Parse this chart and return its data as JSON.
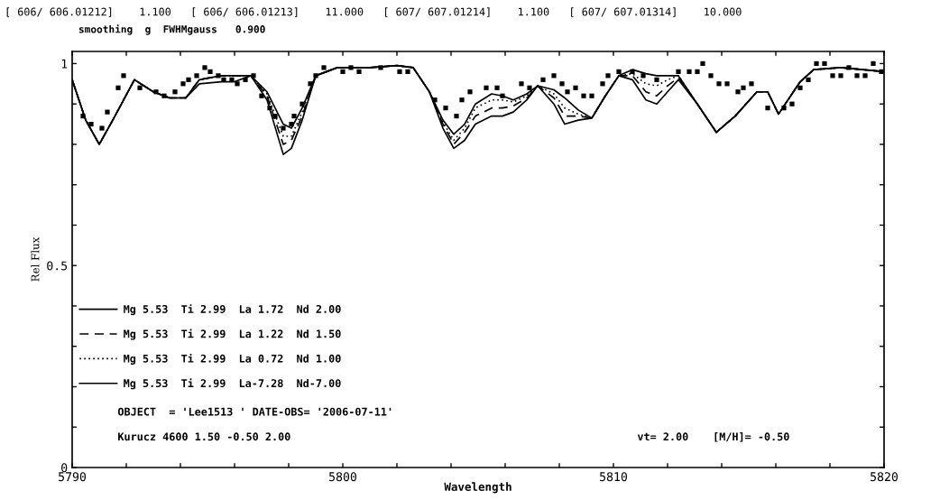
{
  "chart_data": {
    "type": "line",
    "title": "[ 606/ 606.01212]    1.100   [ 606/ 606.01213]    11.000   [ 607/ 607.01214]    1.100   [ 607/ 607.01314]    10.000",
    "subtitle": "smoothing  g  FWHMgauss   0.900",
    "xlabel": "Wavelength",
    "ylabel": "Rel Flux",
    "x": [
      5790.0,
      5790.5,
      5791.0,
      5791.5,
      5792.3,
      5793.0,
      5793.6,
      5794.2,
      5794.7,
      5795.5,
      5796.0,
      5796.6,
      5797.2,
      5797.8,
      5798.1,
      5798.5,
      5799.0,
      5799.8,
      5801.0,
      5802.0,
      5802.6,
      5803.2,
      5803.7,
      5804.1,
      5804.5,
      5804.9,
      5805.5,
      5805.9,
      5806.3,
      5806.8,
      5807.2,
      5807.8,
      5808.2,
      5808.7,
      5809.2,
      5809.7,
      5810.2,
      5810.7,
      5811.2,
      5811.6,
      5812.0,
      5812.4,
      5813.1,
      5813.8,
      5814.5,
      5815.3,
      5815.7,
      5816.1,
      5816.9,
      5817.4,
      5818.4,
      5819.2,
      5820.0
    ],
    "series": [
      {
        "name": "Mg 5.53  Ti 2.99  La 1.72  Nd 2.00",
        "color": "#000000",
        "line_style": "solid",
        "values": [
          0.96,
          0.86,
          0.8,
          0.86,
          0.96,
          0.93,
          0.915,
          0.915,
          0.96,
          0.97,
          0.97,
          0.97,
          0.91,
          0.775,
          0.79,
          0.86,
          0.97,
          0.99,
          0.99,
          0.995,
          0.99,
          0.93,
          0.84,
          0.79,
          0.81,
          0.85,
          0.87,
          0.87,
          0.88,
          0.91,
          0.945,
          0.9,
          0.85,
          0.86,
          0.865,
          0.92,
          0.97,
          0.96,
          0.91,
          0.9,
          0.93,
          0.96,
          0.9,
          0.83,
          0.87,
          0.93,
          0.93,
          0.875,
          0.955,
          0.985,
          0.99,
          0.985,
          0.98
        ]
      },
      {
        "name": "Mg 5.53  Ti 2.99  La 1.22  Nd 1.50",
        "color": "#000000",
        "line_style": "dashed",
        "values": [
          0.96,
          0.86,
          0.8,
          0.86,
          0.96,
          0.93,
          0.915,
          0.915,
          0.96,
          0.97,
          0.97,
          0.97,
          0.92,
          0.8,
          0.81,
          0.87,
          0.97,
          0.99,
          0.99,
          0.995,
          0.99,
          0.93,
          0.85,
          0.8,
          0.83,
          0.87,
          0.89,
          0.89,
          0.895,
          0.915,
          0.945,
          0.915,
          0.87,
          0.87,
          0.865,
          0.92,
          0.97,
          0.97,
          0.93,
          0.92,
          0.945,
          0.965,
          0.9,
          0.83,
          0.87,
          0.93,
          0.93,
          0.875,
          0.955,
          0.985,
          0.99,
          0.985,
          0.98
        ]
      },
      {
        "name": "Mg 5.53  Ti 2.99  La 0.72  Nd 1.00",
        "color": "#000000",
        "line_style": "dotted",
        "values": [
          0.96,
          0.86,
          0.8,
          0.86,
          0.96,
          0.93,
          0.915,
          0.915,
          0.96,
          0.97,
          0.97,
          0.97,
          0.925,
          0.82,
          0.82,
          0.88,
          0.97,
          0.99,
          0.99,
          0.995,
          0.99,
          0.93,
          0.855,
          0.81,
          0.84,
          0.89,
          0.91,
          0.91,
          0.905,
          0.92,
          0.945,
          0.925,
          0.89,
          0.875,
          0.865,
          0.92,
          0.97,
          0.975,
          0.95,
          0.945,
          0.96,
          0.97,
          0.9,
          0.83,
          0.87,
          0.93,
          0.93,
          0.875,
          0.955,
          0.985,
          0.99,
          0.985,
          0.98
        ]
      },
      {
        "name": "Mg 5.53  Ti 2.99  La-7.28  Nd-7.00",
        "color": "#000000",
        "line_style": "solid",
        "values": [
          0.96,
          0.86,
          0.8,
          0.86,
          0.96,
          0.93,
          0.915,
          0.915,
          0.95,
          0.955,
          0.955,
          0.97,
          0.93,
          0.85,
          0.84,
          0.89,
          0.97,
          0.99,
          0.99,
          0.995,
          0.99,
          0.93,
          0.86,
          0.825,
          0.85,
          0.9,
          0.925,
          0.92,
          0.91,
          0.925,
          0.945,
          0.935,
          0.915,
          0.885,
          0.865,
          0.92,
          0.97,
          0.985,
          0.975,
          0.97,
          0.97,
          0.97,
          0.9,
          0.83,
          0.87,
          0.93,
          0.93,
          0.875,
          0.955,
          0.985,
          0.99,
          0.985,
          0.98
        ]
      },
      {
        "type": "scatter",
        "color": "#000000",
        "marker": "square",
        "x": [
          5790.4,
          5790.7,
          5791.1,
          5791.3,
          5791.7,
          5791.9,
          5792.5,
          5793.1,
          5793.4,
          5793.8,
          5794.1,
          5794.3,
          5794.6,
          5794.9,
          5795.1,
          5795.4,
          5795.6,
          5795.9,
          5796.1,
          5796.4,
          5796.7,
          5797.0,
          5797.3,
          5797.5,
          5797.8,
          5798.1,
          5798.2,
          5798.5,
          5798.8,
          5799.0,
          5799.3,
          5800.0,
          5800.3,
          5800.6,
          5801.4,
          5802.1,
          5802.4,
          5803.4,
          5803.8,
          5804.2,
          5804.4,
          5804.7,
          5805.3,
          5805.7,
          5805.9,
          5806.6,
          5806.9,
          5807.4,
          5807.8,
          5808.1,
          5808.3,
          5808.6,
          5808.9,
          5809.2,
          5809.6,
          5809.8,
          5810.2,
          5810.7,
          5811.1,
          5811.6,
          5812.4,
          5812.8,
          5813.1,
          5813.3,
          5813.6,
          5813.9,
          5814.2,
          5814.6,
          5814.8,
          5815.1,
          5815.7,
          5816.3,
          5816.6,
          5816.9,
          5817.2,
          5817.5,
          5817.8,
          5818.1,
          5818.4,
          5818.7,
          5819.0,
          5819.3,
          5819.6,
          5819.9
        ],
        "values": [
          0.87,
          0.85,
          0.84,
          0.88,
          0.94,
          0.97,
          0.94,
          0.93,
          0.92,
          0.93,
          0.95,
          0.96,
          0.97,
          0.99,
          0.98,
          0.97,
          0.96,
          0.96,
          0.95,
          0.96,
          0.97,
          0.92,
          0.89,
          0.87,
          0.84,
          0.85,
          0.87,
          0.9,
          0.95,
          0.97,
          0.99,
          0.98,
          0.99,
          0.98,
          0.99,
          0.98,
          0.98,
          0.91,
          0.89,
          0.87,
          0.91,
          0.93,
          0.94,
          0.94,
          0.92,
          0.95,
          0.94,
          0.96,
          0.97,
          0.95,
          0.93,
          0.94,
          0.92,
          0.92,
          0.95,
          0.97,
          0.98,
          0.98,
          0.97,
          0.96,
          0.98,
          0.98,
          0.98,
          1.0,
          0.97,
          0.95,
          0.95,
          0.93,
          0.94,
          0.95,
          0.89,
          0.89,
          0.9,
          0.94,
          0.96,
          1.0,
          1.0,
          0.97,
          0.97,
          0.99,
          0.97,
          0.97,
          1.0,
          0.98
        ]
      }
    ],
    "xlim": [
      5790,
      5820
    ],
    "xticks": [
      5790,
      {
        "value": 5792,
        "label": null
      },
      {
        "value": 5794,
        "label": null
      },
      {
        "value": 5796,
        "label": null
      },
      {
        "value": 5798,
        "label": null
      },
      5800,
      {
        "value": 5802,
        "label": null
      },
      {
        "value": 5804,
        "label": null
      },
      {
        "value": 5806,
        "label": null
      },
      {
        "value": 5808,
        "label": null
      },
      5810,
      {
        "value": 5812,
        "label": null
      },
      {
        "value": 5814,
        "label": null
      },
      {
        "value": 5816,
        "label": null
      },
      {
        "value": 5818,
        "label": null
      },
      5820
    ],
    "ylim": [
      0,
      1.03
    ],
    "yticks": [
      0,
      {
        "value": 0.1,
        "label": null
      },
      {
        "value": 0.2,
        "label": null
      },
      {
        "value": 0.3,
        "label": null
      },
      {
        "value": 0.4,
        "label": null
      },
      0.5,
      {
        "value": 0.6,
        "label": null
      },
      {
        "value": 0.7,
        "label": null
      },
      {
        "value": 0.8,
        "label": null
      },
      {
        "value": 0.9,
        "label": null
      },
      1
    ],
    "grid": false,
    "legend": "bottom left",
    "annotations": [
      "OBJECT  = 'Lee1513 ' DATE-OBS= '2006-07-11'",
      "Kurucz 4600 1.50 -0.50 2.00",
      "vt= 2.00",
      "[M/H]= -0.50"
    ]
  }
}
